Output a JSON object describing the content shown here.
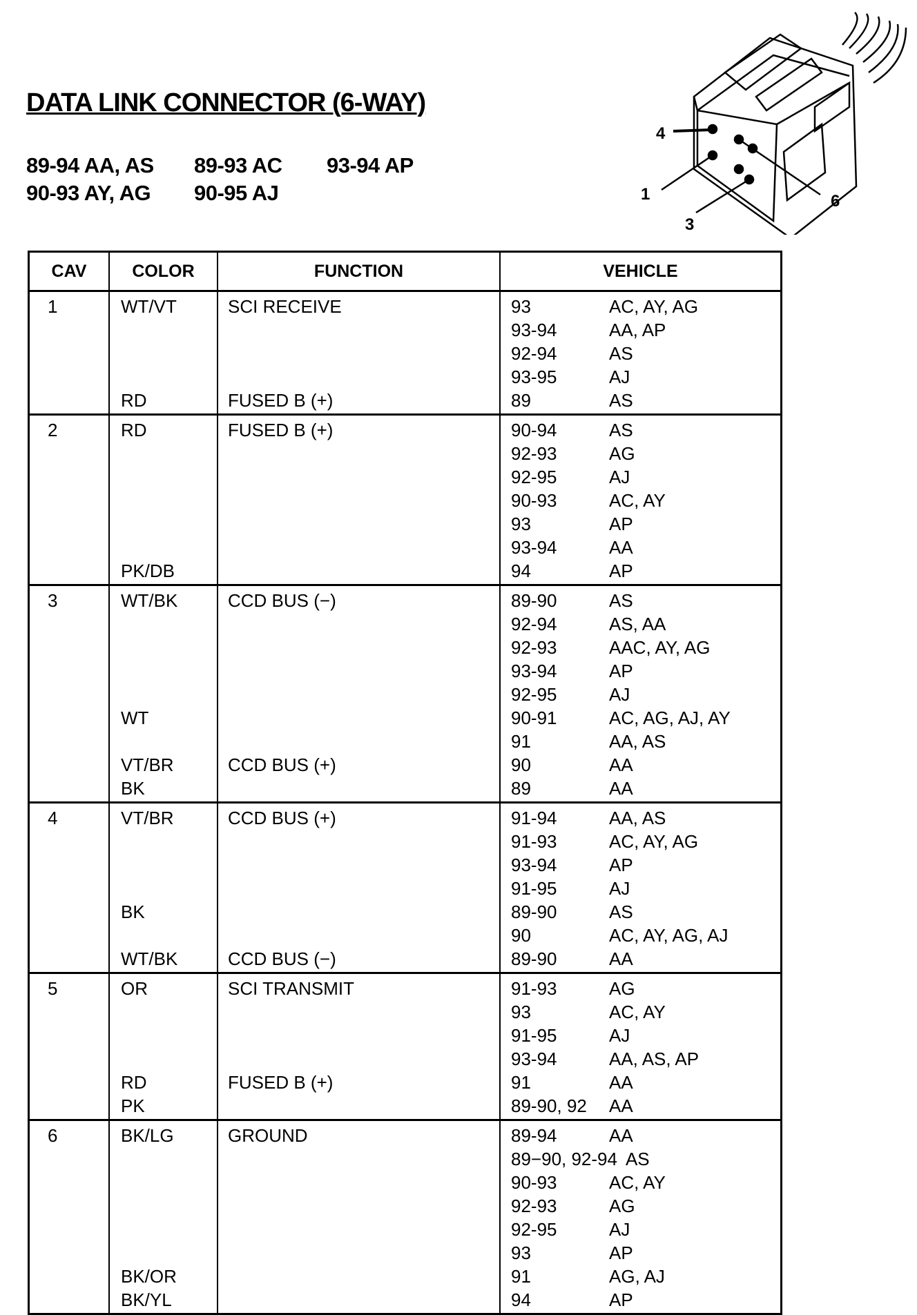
{
  "title": "DATA LINK CONNECTOR (6-WAY)",
  "applications": [
    [
      "89-94 AA, AS",
      "89-93 AC",
      "93-94 AP"
    ],
    [
      "90-93 AY, AG",
      "90-95 AJ"
    ]
  ],
  "connector_pins": [
    "4",
    "1",
    "6",
    "3"
  ],
  "table": {
    "headers": [
      "CAV",
      "COLOR",
      "FUNCTION",
      "VEHICLE"
    ],
    "rows": [
      {
        "cav": "1",
        "lines": [
          {
            "color": "WT/VT",
            "function": "SCI RECEIVE",
            "years": "93",
            "models": "AC, AY, AG"
          },
          {
            "color": "",
            "function": "",
            "years": "93-94",
            "models": "AA, AP"
          },
          {
            "color": "",
            "function": "",
            "years": "92-94",
            "models": "AS"
          },
          {
            "color": "",
            "function": "",
            "years": "93-95",
            "models": "AJ"
          },
          {
            "color": "RD",
            "function": "FUSED B (+)",
            "years": "89",
            "models": "AS"
          }
        ]
      },
      {
        "cav": "2",
        "lines": [
          {
            "color": "RD",
            "function": "FUSED B (+)",
            "years": "90-94",
            "models": "AS"
          },
          {
            "color": "",
            "function": "",
            "years": "92-93",
            "models": "AG"
          },
          {
            "color": "",
            "function": "",
            "years": "92-95",
            "models": "AJ"
          },
          {
            "color": "",
            "function": "",
            "years": "90-93",
            "models": "AC, AY"
          },
          {
            "color": "",
            "function": "",
            "years": "93",
            "models": "AP"
          },
          {
            "color": "",
            "function": "",
            "years": "93-94",
            "models": "AA"
          },
          {
            "color": "PK/DB",
            "function": "",
            "years": "94",
            "models": "AP"
          }
        ]
      },
      {
        "cav": "3",
        "lines": [
          {
            "color": "WT/BK",
            "function": "CCD BUS (−)",
            "years": "89-90",
            "models": "AS"
          },
          {
            "color": "",
            "function": "",
            "years": "92-94",
            "models": "AS, AA"
          },
          {
            "color": "",
            "function": "",
            "years": "92-93",
            "models": "AAC, AY, AG"
          },
          {
            "color": "",
            "function": "",
            "years": "93-94",
            "models": "AP"
          },
          {
            "color": "",
            "function": "",
            "years": "92-95",
            "models": "AJ"
          },
          {
            "color": "WT",
            "function": "",
            "years": "90-91",
            "models": "AC, AG, AJ, AY"
          },
          {
            "color": "",
            "function": "",
            "years": "91",
            "models": "AA, AS"
          },
          {
            "color": "VT/BR",
            "function": "CCD BUS (+)",
            "years": "90",
            "models": "AA"
          },
          {
            "color": "BK",
            "function": "",
            "years": "89",
            "models": "AA"
          }
        ]
      },
      {
        "cav": "4",
        "lines": [
          {
            "color": "VT/BR",
            "function": "CCD BUS (+)",
            "years": "91-94",
            "models": "AA, AS"
          },
          {
            "color": "",
            "function": "",
            "years": "91-93",
            "models": "AC, AY, AG"
          },
          {
            "color": "",
            "function": "",
            "years": "93-94",
            "models": "AP"
          },
          {
            "color": "",
            "function": "",
            "years": "91-95",
            "models": "AJ"
          },
          {
            "color": "BK",
            "function": "",
            "years": "89-90",
            "models": "AS"
          },
          {
            "color": "",
            "function": "",
            "years": "90",
            "models": "AC, AY, AG, AJ"
          },
          {
            "color": "WT/BK",
            "function": "CCD BUS (−)",
            "years": "89-90",
            "models": "AA"
          }
        ]
      },
      {
        "cav": "5",
        "lines": [
          {
            "color": "OR",
            "function": "SCI TRANSMIT",
            "years": "91-93",
            "models": "AG"
          },
          {
            "color": "",
            "function": "",
            "years": "93",
            "models": "AC, AY"
          },
          {
            "color": "",
            "function": "",
            "years": "91-95",
            "models": "AJ"
          },
          {
            "color": "",
            "function": "",
            "years": "93-94",
            "models": "AA, AS, AP"
          },
          {
            "color": "RD",
            "function": "FUSED B (+)",
            "years": "91",
            "models": "AA"
          },
          {
            "color": "PK",
            "function": "",
            "years": "89-90, 92",
            "models": "AA"
          }
        ]
      },
      {
        "cav": "6",
        "lines": [
          {
            "color": "BK/LG",
            "function": "GROUND",
            "years": "89-94",
            "models": "AA"
          },
          {
            "color": "",
            "function": "",
            "years": "89−90, 92-94",
            "models": "AS"
          },
          {
            "color": "",
            "function": "",
            "years": "90-93",
            "models": "AC, AY"
          },
          {
            "color": "",
            "function": "",
            "years": "92-93",
            "models": "AG"
          },
          {
            "color": "",
            "function": "",
            "years": "92-95",
            "models": "AJ"
          },
          {
            "color": "",
            "function": "",
            "years": "93",
            "models": "AP"
          },
          {
            "color": "BK/OR",
            "function": "",
            "years": "91",
            "models": "AG, AJ"
          },
          {
            "color": "BK/YL",
            "function": "",
            "years": "94",
            "models": "AP"
          }
        ]
      }
    ]
  }
}
